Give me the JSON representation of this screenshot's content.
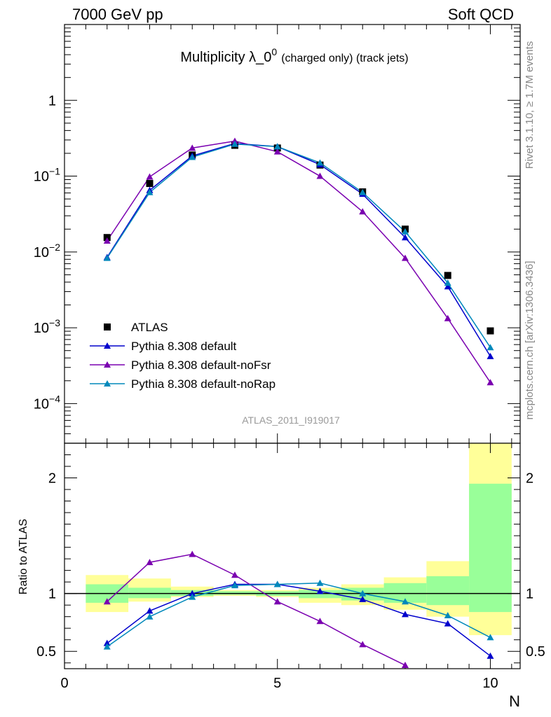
{
  "header": {
    "left": "7000 GeV pp",
    "right": "Soft QCD"
  },
  "side_labels": {
    "rivet": "Rivet 3.1.10, ≥ 1.7M events",
    "mcplots": "mcplots.cern.ch [arXiv:1306.3436]"
  },
  "analysis_tag": "ATLAS_2011_I919017",
  "colors": {
    "data": "#000000",
    "default": "#0000cc",
    "noFsr": "#7a00b0",
    "noRap": "#0088bb",
    "band_inner": "#99ff99",
    "band_outer": "#ffff99"
  },
  "chart_data": [
    {
      "type": "scatter",
      "title": "Multiplicity λ_0⁰ (charged only) (track jets)",
      "title_main": "Multiplicity λ_0",
      "title_sup": "0",
      "title_small": "(charged only) (track jets)",
      "xlabel": "N",
      "ylabel": "",
      "yscale": "log",
      "xlim": [
        0,
        10.7
      ],
      "ylim": [
        3e-05,
        10
      ],
      "ytick_labels": [
        {
          "value": 1,
          "base": "1",
          "exp": ""
        },
        {
          "value": 0.1,
          "base": "10",
          "exp": "−1"
        },
        {
          "value": 0.01,
          "base": "10",
          "exp": "−2"
        },
        {
          "value": 0.001,
          "base": "10",
          "exp": "−3"
        },
        {
          "value": 0.0001,
          "base": "10",
          "exp": "−4"
        }
      ],
      "legend_position": "lower-left",
      "x": [
        1,
        2,
        3,
        4,
        5,
        6,
        7,
        8,
        9,
        10
      ],
      "series": [
        {
          "name": "ATLAS",
          "key": "data",
          "marker": "square",
          "values": [
            0.0155,
            0.08,
            0.19,
            0.255,
            0.235,
            0.14,
            0.062,
            0.02,
            0.0049,
            0.00091
          ]
        },
        {
          "name": "Pythia 8.308 default",
          "key": "default",
          "marker": "triangle",
          "values": [
            0.0085,
            0.065,
            0.185,
            0.27,
            0.245,
            0.142,
            0.058,
            0.0155,
            0.0035,
            0.00042
          ]
        },
        {
          "name": "Pythia 8.308 default-noFsr",
          "key": "noFsr",
          "marker": "triangle",
          "values": [
            0.014,
            0.098,
            0.235,
            0.29,
            0.21,
            0.1,
            0.034,
            0.0083,
            0.00133,
            0.00019
          ]
        },
        {
          "name": "Pythia 8.308 default-noRap",
          "key": "noRap",
          "marker": "triangle",
          "values": [
            0.0083,
            0.061,
            0.178,
            0.265,
            0.245,
            0.15,
            0.061,
            0.0185,
            0.0039,
            0.00055
          ]
        }
      ]
    },
    {
      "type": "scatter",
      "title": "",
      "xlabel": "N",
      "ylabel": "Ratio to ATLAS",
      "xlim": [
        0,
        10.7
      ],
      "ylim": [
        0.35,
        2.3
      ],
      "yticks": [
        0.5,
        1,
        2
      ],
      "ytick_labels": [
        "0.5",
        "1",
        "2"
      ],
      "xticks": [
        0,
        5,
        10
      ],
      "xtick_labels": [
        "0",
        "5",
        "10"
      ],
      "x": [
        1,
        2,
        3,
        4,
        5,
        6,
        7,
        8,
        9,
        10
      ],
      "bands": {
        "inner": [
          [
            0.92,
            1.08
          ],
          [
            0.96,
            1.05
          ],
          [
            0.98,
            1.03
          ],
          [
            0.99,
            1.02
          ],
          [
            0.98,
            1.02
          ],
          [
            0.96,
            1.03
          ],
          [
            0.94,
            1.05
          ],
          [
            0.92,
            1.09
          ],
          [
            0.9,
            1.15
          ],
          [
            0.84,
            1.95
          ]
        ],
        "outer": [
          [
            0.84,
            1.16
          ],
          [
            0.93,
            1.13
          ],
          [
            0.97,
            1.06
          ],
          [
            0.98,
            1.03
          ],
          [
            0.97,
            1.03
          ],
          [
            0.92,
            1.05
          ],
          [
            0.9,
            1.08
          ],
          [
            0.86,
            1.14
          ],
          [
            0.8,
            1.28
          ],
          [
            0.64,
            2.4
          ]
        ]
      },
      "series": [
        {
          "name": "Pythia 8.308 default",
          "key": "default",
          "values": [
            0.57,
            0.85,
            1.0,
            1.08,
            1.08,
            1.02,
            0.95,
            0.82,
            0.74,
            0.46
          ]
        },
        {
          "name": "Pythia 8.308 default-noFsr",
          "key": "noFsr",
          "values": [
            0.93,
            1.27,
            1.34,
            1.16,
            0.93,
            0.76,
            0.56,
            0.38,
            null,
            null
          ]
        },
        {
          "name": "Pythia 8.308 default-noRap",
          "key": "noRap",
          "values": [
            0.54,
            0.8,
            0.97,
            1.07,
            1.08,
            1.09,
            1.0,
            0.93,
            0.81,
            0.62
          ]
        }
      ]
    }
  ]
}
